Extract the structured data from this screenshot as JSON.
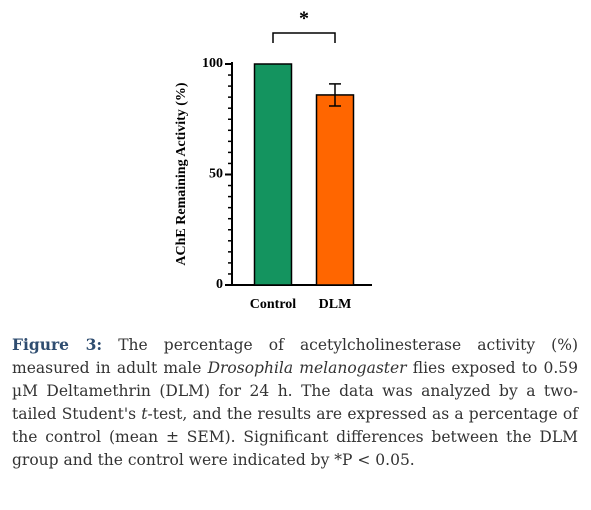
{
  "chart_data": {
    "type": "bar",
    "ylabel": "AChE Remaining Activity (%)",
    "categories": [
      "Control",
      "DLM"
    ],
    "values": [
      100,
      86
    ],
    "errors": [
      0,
      5
    ],
    "colors": [
      "#14945f",
      "#ff6600"
    ],
    "ylim": [
      0,
      100
    ],
    "yticks": [
      0,
      50,
      100
    ],
    "minor_yticks": [
      5,
      10,
      15,
      20,
      25,
      30,
      35,
      40,
      45,
      55,
      60,
      65,
      70,
      75,
      80,
      85,
      90,
      95
    ],
    "annotation": "*"
  },
  "caption": [
    "Figure 3:",
    " The percentage of acetylcholinesterase activity (%) measured in adult male ",
    "Drosophila melanogaster",
    " flies exposed to 0.59 µM Deltamethrin (DLM) for 24 h. The data was analyzed by a two-tailed Student's ",
    "t",
    "-test, and the results are expressed as a percentage of the control (mean ± SEM). Significant differences between the DLM group and the control were indicated by *P < 0.05."
  ]
}
